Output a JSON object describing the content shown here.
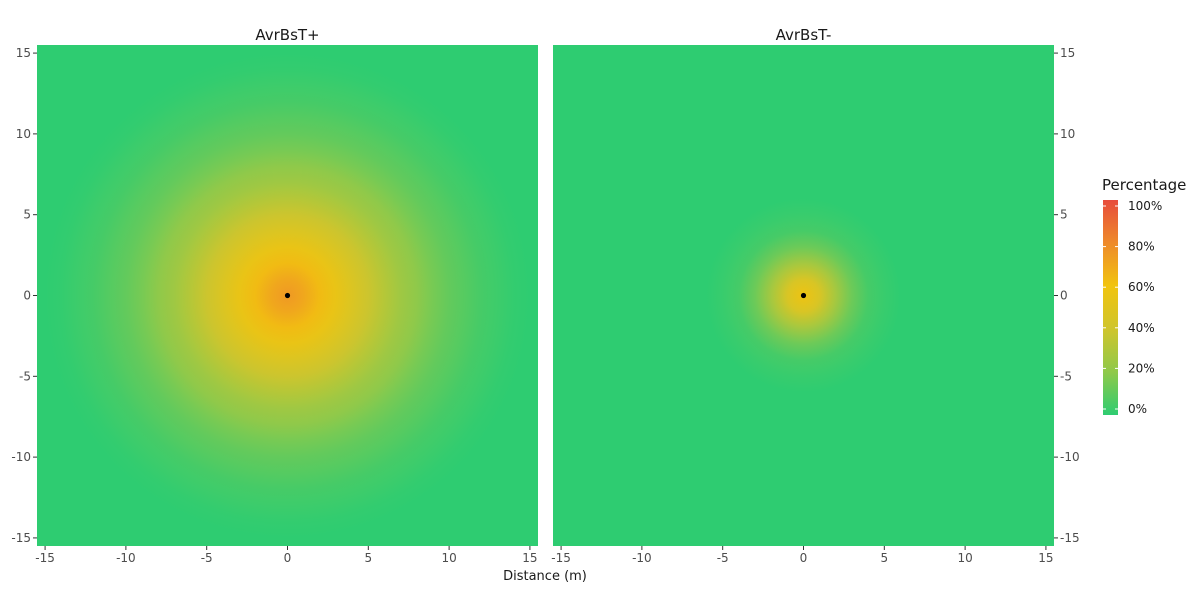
{
  "chart_data": {
    "type": "heatmap",
    "xlabel": "Distance (m)",
    "ylabel": "",
    "xlim": [
      -15.5,
      15.5
    ],
    "ylim": [
      -15.5,
      15.5
    ],
    "x_ticks": [
      -15,
      -10,
      -5,
      0,
      5,
      10,
      15
    ],
    "y_ticks": [
      -15,
      -10,
      -5,
      0,
      5,
      10,
      15
    ],
    "x_tick_labels": [
      "-15",
      "-10",
      "-5",
      "0",
      "5",
      "10",
      "15"
    ],
    "y_tick_labels": [
      "-15",
      "-10",
      "-5",
      "0",
      "5",
      "10",
      "15"
    ],
    "grid": false,
    "panels": [
      {
        "title": "AvrBsT+",
        "center": [
          0,
          0
        ],
        "peak_percentage": 75,
        "falloff": "radial, reaching approximately 0% near distance 15 m",
        "radial_profile": [
          {
            "distance": 0,
            "percentage": 75
          },
          {
            "distance": 1,
            "percentage": 70
          },
          {
            "distance": 2,
            "percentage": 63
          },
          {
            "distance": 3,
            "percentage": 55
          },
          {
            "distance": 4,
            "percentage": 47
          },
          {
            "distance": 5,
            "percentage": 39
          },
          {
            "distance": 6,
            "percentage": 32
          },
          {
            "distance": 7,
            "percentage": 25
          },
          {
            "distance": 8,
            "percentage": 20
          },
          {
            "distance": 9,
            "percentage": 15
          },
          {
            "distance": 10,
            "percentage": 11
          },
          {
            "distance": 11,
            "percentage": 8
          },
          {
            "distance": 12,
            "percentage": 5
          },
          {
            "distance": 13,
            "percentage": 3
          },
          {
            "distance": 14,
            "percentage": 1
          },
          {
            "distance": 15,
            "percentage": 0
          }
        ]
      },
      {
        "title": "AvrBsT-",
        "center": [
          0,
          0
        ],
        "peak_percentage": 58,
        "falloff": "radial, reaching approximately 0% near distance 6 m",
        "radial_profile": [
          {
            "distance": 0,
            "percentage": 58
          },
          {
            "distance": 1,
            "percentage": 45
          },
          {
            "distance": 2,
            "percentage": 27
          },
          {
            "distance": 3,
            "percentage": 13
          },
          {
            "distance": 4,
            "percentage": 5
          },
          {
            "distance": 5,
            "percentage": 2
          },
          {
            "distance": 6,
            "percentage": 0
          },
          {
            "distance": 15,
            "percentage": 0
          }
        ]
      }
    ],
    "legend": {
      "title": "Percentage",
      "position": "right",
      "breaks": [
        0,
        20,
        40,
        60,
        80,
        100
      ],
      "labels": [
        "0%",
        "20%",
        "40%",
        "60%",
        "80%",
        "100%"
      ],
      "color_scale": [
        {
          "value": 0,
          "color": "#2ecc71"
        },
        {
          "value": 20,
          "color": "#8fc94a"
        },
        {
          "value": 40,
          "color": "#cfc52c"
        },
        {
          "value": 60,
          "color": "#f1c40f"
        },
        {
          "value": 80,
          "color": "#ee8a2b"
        },
        {
          "value": 100,
          "color": "#e74c3c"
        }
      ]
    },
    "center_point_color": "#000000"
  }
}
